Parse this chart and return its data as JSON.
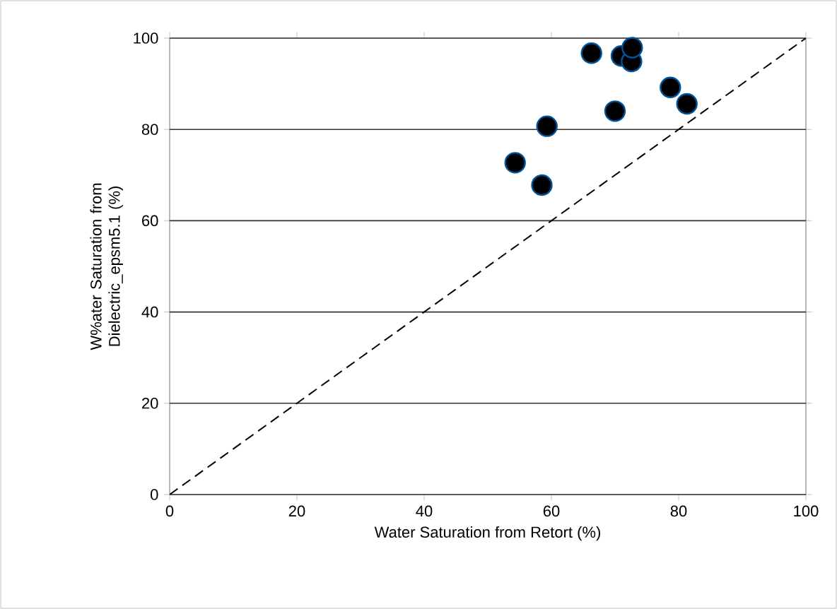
{
  "chart_data": {
    "type": "scatter",
    "xlabel": "Water Saturation from Retort (%)",
    "ylabel": "W%ater Saturation from Dielectric_epsm5.1 (%)",
    "xlim": [
      0,
      100
    ],
    "ylim": [
      0,
      100
    ],
    "xticks": [
      0,
      20,
      40,
      60,
      80,
      100
    ],
    "yticks": [
      0,
      20,
      40,
      60,
      80,
      100
    ],
    "grid": "y",
    "series": [
      {
        "type": "scatter",
        "marker": "circle",
        "color": "#000000",
        "x": [
          54.3,
          58.5,
          59.3,
          66.3,
          70.0,
          71.0,
          72.6,
          72.7,
          78.7,
          81.3
        ],
        "values": [
          72.7,
          67.8,
          80.7,
          96.7,
          84.0,
          96.1,
          94.9,
          97.9,
          89.2,
          85.6
        ]
      },
      {
        "type": "line",
        "color": "#000000",
        "line_style": "dashed",
        "marker": "none",
        "x": [
          0,
          100
        ],
        "values": [
          0,
          100
        ]
      }
    ]
  }
}
